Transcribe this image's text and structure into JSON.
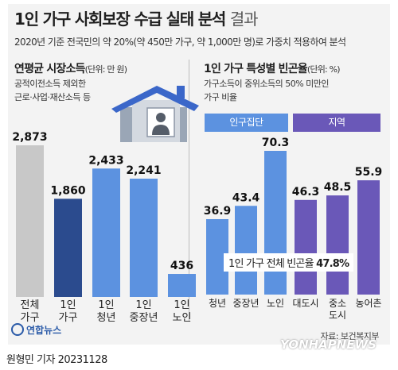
{
  "header": {
    "title": "1인 가구 사회보장 수급 실태 분석",
    "title_suffix": "결과",
    "subtitle": "2020년 기준 전국민의 약 20%(약 450만 가구, 약 1,000만 명)로 가중치 적용하여 분석"
  },
  "left_panel": {
    "title": "연평균 시장소득",
    "unit": "(단위: 만 원)",
    "note_lines": [
      "공적이전소득 제외한",
      "근로·사업·재산소득 등"
    ]
  },
  "right_panel": {
    "title": "1인 가구 특성별 빈곤율",
    "unit": "(단위: %)",
    "note_lines": [
      "가구소득이 중위소득의 50% 미만인",
      "가구 비율"
    ],
    "tab_a": "인구집단",
    "tab_b": "지역",
    "summary_prefix": "1인 가구 전체 빈곤율",
    "summary_value": "47.8%"
  },
  "source": "자료: 보건복지부",
  "logo_text": "연합뉴스",
  "byline": "원형민 기자  20231128",
  "watermark": "YONHAPNEWS",
  "icons": [
    "house-icon",
    "person-icon",
    "yonhap-logo-icon"
  ],
  "colors": {
    "gray_bar": "#c8c8c8",
    "dark_blue_bar": "#2b4b8e",
    "blue_bar": "#5c92e0",
    "purple_bar": "#6a58b8",
    "roof": "#3b67c9"
  },
  "chart_data": [
    {
      "type": "bar",
      "title": "연평균 시장소득",
      "ylabel": "(단위: 만 원)",
      "categories": [
        "전체 가구",
        "1인 가구",
        "1인 청년",
        "1인 중장년",
        "1인 노인"
      ],
      "values": [
        2873,
        1860,
        2433,
        2241,
        436
      ],
      "value_labels": [
        "2,873",
        "1,860",
        "2,433",
        "2,241",
        "436"
      ],
      "ylim": [
        0,
        2873
      ]
    },
    {
      "type": "bar",
      "title": "1인 가구 특성별 빈곤율",
      "ylabel": "(단위: %)",
      "groups": [
        "인구집단",
        "지역"
      ],
      "categories": [
        "청년",
        "중장년",
        "노인",
        "대도시",
        "중소 도시",
        "농어촌"
      ],
      "values": [
        36.9,
        43.4,
        70.3,
        46.3,
        48.5,
        55.9
      ],
      "value_labels": [
        "36.9",
        "43.4",
        "70.3",
        "46.3",
        "48.5",
        "55.9"
      ],
      "ylim": [
        0,
        70.3
      ]
    }
  ]
}
